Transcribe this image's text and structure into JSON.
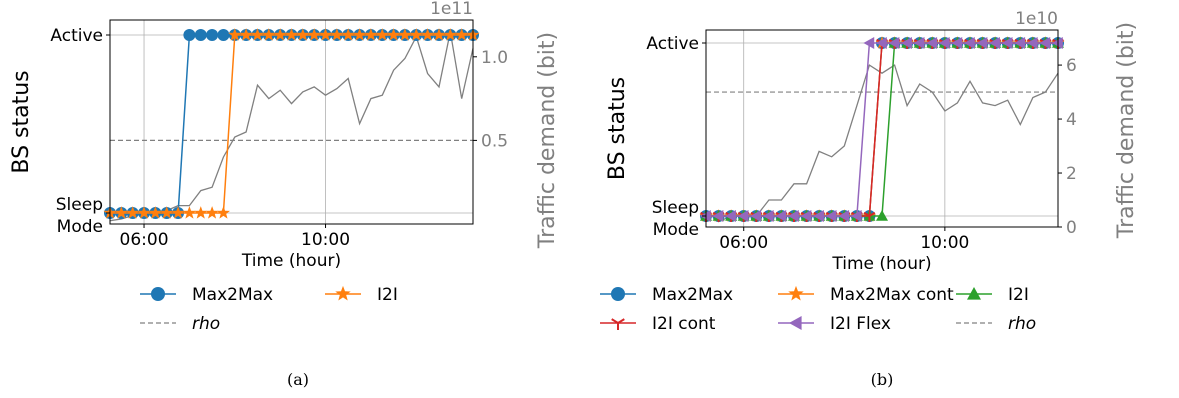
{
  "chart_data": [
    {
      "type": "line",
      "panel_label": "(a)",
      "xlabel": "Time (hour)",
      "ylabel": "BS status",
      "y2label": "Traffic demand (bit)",
      "y2_offset_text": "1e11",
      "x_range": [
        "05:15",
        "13:15"
      ],
      "x_ticks": [
        "06:00",
        "10:00"
      ],
      "y_ticks": [
        "Sleep\nMode",
        "Active"
      ],
      "y2_ticks": [
        "0.5",
        "1.0"
      ],
      "y2lim": [
        0.0,
        1.22
      ],
      "rho": 0.5,
      "grid": true,
      "legend_position": "below",
      "legend_columns": 2,
      "series": [
        {
          "name": "Max2Max",
          "color": "#1f77b4",
          "marker": "circle",
          "x": [
            "05:15",
            "05:30",
            "05:45",
            "06:00",
            "06:15",
            "06:30",
            "06:45",
            "07:00",
            "07:15",
            "07:30",
            "07:45",
            "08:00",
            "08:15",
            "08:30",
            "08:45",
            "09:00",
            "09:15",
            "09:30",
            "09:45",
            "10:00",
            "10:15",
            "10:30",
            "10:45",
            "11:00",
            "11:15",
            "11:30",
            "11:45",
            "12:00",
            "12:15",
            "12:30",
            "12:45",
            "13:00",
            "13:15"
          ],
          "y": [
            0,
            0,
            0,
            0,
            0,
            0,
            0,
            1,
            1,
            1,
            1,
            1,
            1,
            1,
            1,
            1,
            1,
            1,
            1,
            1,
            1,
            1,
            1,
            1,
            1,
            1,
            1,
            1,
            1,
            1,
            1,
            1,
            1
          ]
        },
        {
          "name": "I2I",
          "color": "#ff7f0e",
          "marker": "star",
          "x": [
            "05:15",
            "05:30",
            "05:45",
            "06:00",
            "06:15",
            "06:30",
            "06:45",
            "07:00",
            "07:15",
            "07:30",
            "07:45",
            "08:00",
            "08:15",
            "08:30",
            "08:45",
            "09:00",
            "09:15",
            "09:30",
            "09:45",
            "10:00",
            "10:15",
            "10:30",
            "10:45",
            "11:00",
            "11:15",
            "11:30",
            "11:45",
            "12:00",
            "12:15",
            "12:30",
            "12:45",
            "13:00",
            "13:15"
          ],
          "y": [
            0,
            0,
            0,
            0,
            0,
            0,
            0,
            0,
            0,
            0,
            0,
            1,
            1,
            1,
            1,
            1,
            1,
            1,
            1,
            1,
            1,
            1,
            1,
            1,
            1,
            1,
            1,
            1,
            1,
            1,
            1,
            1,
            1
          ]
        },
        {
          "name": "rho",
          "color": "#808080",
          "style": "dashed",
          "value": 0.5
        }
      ],
      "traffic_demand": {
        "color": "#808080",
        "x": [
          "05:15",
          "05:30",
          "05:45",
          "06:00",
          "06:15",
          "06:30",
          "06:45",
          "07:00",
          "07:15",
          "07:30",
          "07:45",
          "08:00",
          "08:15",
          "08:30",
          "08:45",
          "09:00",
          "09:15",
          "09:30",
          "09:45",
          "10:00",
          "10:15",
          "10:30",
          "10:45",
          "11:00",
          "11:15",
          "11:30",
          "11:45",
          "12:00",
          "12:15",
          "12:30",
          "12:45",
          "13:00",
          "13:15"
        ],
        "y": [
          0.02,
          0.03,
          0.05,
          0.06,
          0.07,
          0.08,
          0.11,
          0.11,
          0.2,
          0.22,
          0.4,
          0.52,
          0.55,
          0.83,
          0.75,
          0.8,
          0.72,
          0.79,
          0.82,
          0.77,
          0.81,
          0.87,
          0.6,
          0.75,
          0.77,
          0.92,
          0.99,
          1.12,
          0.9,
          0.82,
          1.15,
          0.75,
          1.05
        ]
      }
    },
    {
      "type": "line",
      "panel_label": "(b)",
      "xlabel": "Time (hour)",
      "ylabel": "BS status",
      "y2label": "Traffic demand (bit)",
      "y2_offset_text": "1e10",
      "x_range": [
        "05:15",
        "12:15"
      ],
      "x_ticks": [
        "06:00",
        "10:00"
      ],
      "y_ticks": [
        "Sleep\nMode",
        "Active"
      ],
      "y2_ticks": [
        "0",
        "2",
        "4",
        "6"
      ],
      "y2lim": [
        0.0,
        7.3
      ],
      "rho": 5.0,
      "grid": true,
      "legend_position": "below",
      "legend_columns": 3,
      "series": [
        {
          "name": "Max2Max",
          "color": "#1f77b4",
          "marker": "circle",
          "x": [
            "05:15",
            "05:30",
            "05:45",
            "06:00",
            "06:15",
            "06:30",
            "06:45",
            "07:00",
            "07:15",
            "07:30",
            "07:45",
            "08:00",
            "08:15",
            "08:30",
            "08:45",
            "09:00",
            "09:15",
            "09:30",
            "09:45",
            "10:00",
            "10:15",
            "10:30",
            "10:45",
            "11:00",
            "11:15",
            "11:30",
            "11:45",
            "12:00",
            "12:15"
          ],
          "y": [
            0,
            0,
            0,
            0,
            0,
            0,
            0,
            0,
            0,
            0,
            0,
            0,
            0,
            0,
            1,
            1,
            1,
            1,
            1,
            1,
            1,
            1,
            1,
            1,
            1,
            1,
            1,
            1,
            1
          ]
        },
        {
          "name": "Max2Max cont",
          "color": "#ff7f0e",
          "marker": "star",
          "x": [
            "05:15",
            "05:30",
            "05:45",
            "06:00",
            "06:15",
            "06:30",
            "06:45",
            "07:00",
            "07:15",
            "07:30",
            "07:45",
            "08:00",
            "08:15",
            "08:30",
            "08:45",
            "09:00",
            "09:15",
            "09:30",
            "09:45",
            "10:00",
            "10:15",
            "10:30",
            "10:45",
            "11:00",
            "11:15",
            "11:30",
            "11:45",
            "12:00",
            "12:15"
          ],
          "y": [
            0,
            0,
            0,
            0,
            0,
            0,
            0,
            0,
            0,
            0,
            0,
            0,
            0,
            0,
            1,
            1,
            1,
            1,
            1,
            1,
            1,
            1,
            1,
            1,
            1,
            1,
            1,
            1,
            1
          ]
        },
        {
          "name": "I2I",
          "color": "#2ca02c",
          "marker": "triangle-up",
          "x": [
            "05:15",
            "05:30",
            "05:45",
            "06:00",
            "06:15",
            "06:30",
            "06:45",
            "07:00",
            "07:15",
            "07:30",
            "07:45",
            "08:00",
            "08:15",
            "08:30",
            "08:45",
            "09:00",
            "09:15",
            "09:30",
            "09:45",
            "10:00",
            "10:15",
            "10:30",
            "10:45",
            "11:00",
            "11:15",
            "11:30",
            "11:45",
            "12:00",
            "12:15"
          ],
          "y": [
            0,
            0,
            0,
            0,
            0,
            0,
            0,
            0,
            0,
            0,
            0,
            0,
            0,
            0,
            0,
            1,
            1,
            1,
            1,
            1,
            1,
            1,
            1,
            1,
            1,
            1,
            1,
            1,
            1
          ]
        },
        {
          "name": "I2I cont",
          "color": "#d62728",
          "marker": "tri-down",
          "x": [
            "05:15",
            "05:30",
            "05:45",
            "06:00",
            "06:15",
            "06:30",
            "06:45",
            "07:00",
            "07:15",
            "07:30",
            "07:45",
            "08:00",
            "08:15",
            "08:30",
            "08:45",
            "09:00",
            "09:15",
            "09:30",
            "09:45",
            "10:00",
            "10:15",
            "10:30",
            "10:45",
            "11:00",
            "11:15",
            "11:30",
            "11:45",
            "12:00",
            "12:15"
          ],
          "y": [
            0,
            0,
            0,
            0,
            0,
            0,
            0,
            0,
            0,
            0,
            0,
            0,
            0,
            0,
            1,
            1,
            1,
            1,
            1,
            1,
            1,
            1,
            1,
            1,
            1,
            1,
            1,
            1,
            1
          ]
        },
        {
          "name": "I2I Flex",
          "color": "#9467bd",
          "marker": "triangle-left",
          "x": [
            "05:15",
            "05:30",
            "05:45",
            "06:00",
            "06:15",
            "06:30",
            "06:45",
            "07:00",
            "07:15",
            "07:30",
            "07:45",
            "08:00",
            "08:15",
            "08:30",
            "08:45",
            "09:00",
            "09:15",
            "09:30",
            "09:45",
            "10:00",
            "10:15",
            "10:30",
            "10:45",
            "11:00",
            "11:15",
            "11:30",
            "11:45",
            "12:00",
            "12:15"
          ],
          "y": [
            0,
            0,
            0,
            0,
            0,
            0,
            0,
            0,
            0,
            0,
            0,
            0,
            0,
            1,
            1,
            1,
            1,
            1,
            1,
            1,
            1,
            1,
            1,
            1,
            1,
            1,
            1,
            1,
            1
          ]
        },
        {
          "name": "rho",
          "color": "#808080",
          "style": "dashed",
          "value": 5.0
        }
      ],
      "traffic_demand": {
        "color": "#808080",
        "x": [
          "05:15",
          "05:30",
          "05:45",
          "06:00",
          "06:15",
          "06:30",
          "06:45",
          "07:00",
          "07:15",
          "07:30",
          "07:45",
          "08:00",
          "08:15",
          "08:30",
          "08:45",
          "09:00",
          "09:15",
          "09:30",
          "09:45",
          "10:00",
          "10:15",
          "10:30",
          "10:45",
          "11:00",
          "11:15",
          "11:30",
          "11:45",
          "12:00",
          "12:15"
        ],
        "y": [
          0.6,
          0.2,
          0.4,
          0.5,
          0.4,
          1.0,
          1.0,
          1.6,
          1.6,
          2.8,
          2.6,
          3.0,
          4.5,
          6.0,
          5.7,
          6.0,
          4.5,
          5.3,
          5.0,
          4.3,
          4.6,
          5.4,
          4.6,
          4.5,
          4.7,
          3.8,
          4.8,
          5.0,
          5.7
        ]
      }
    }
  ]
}
